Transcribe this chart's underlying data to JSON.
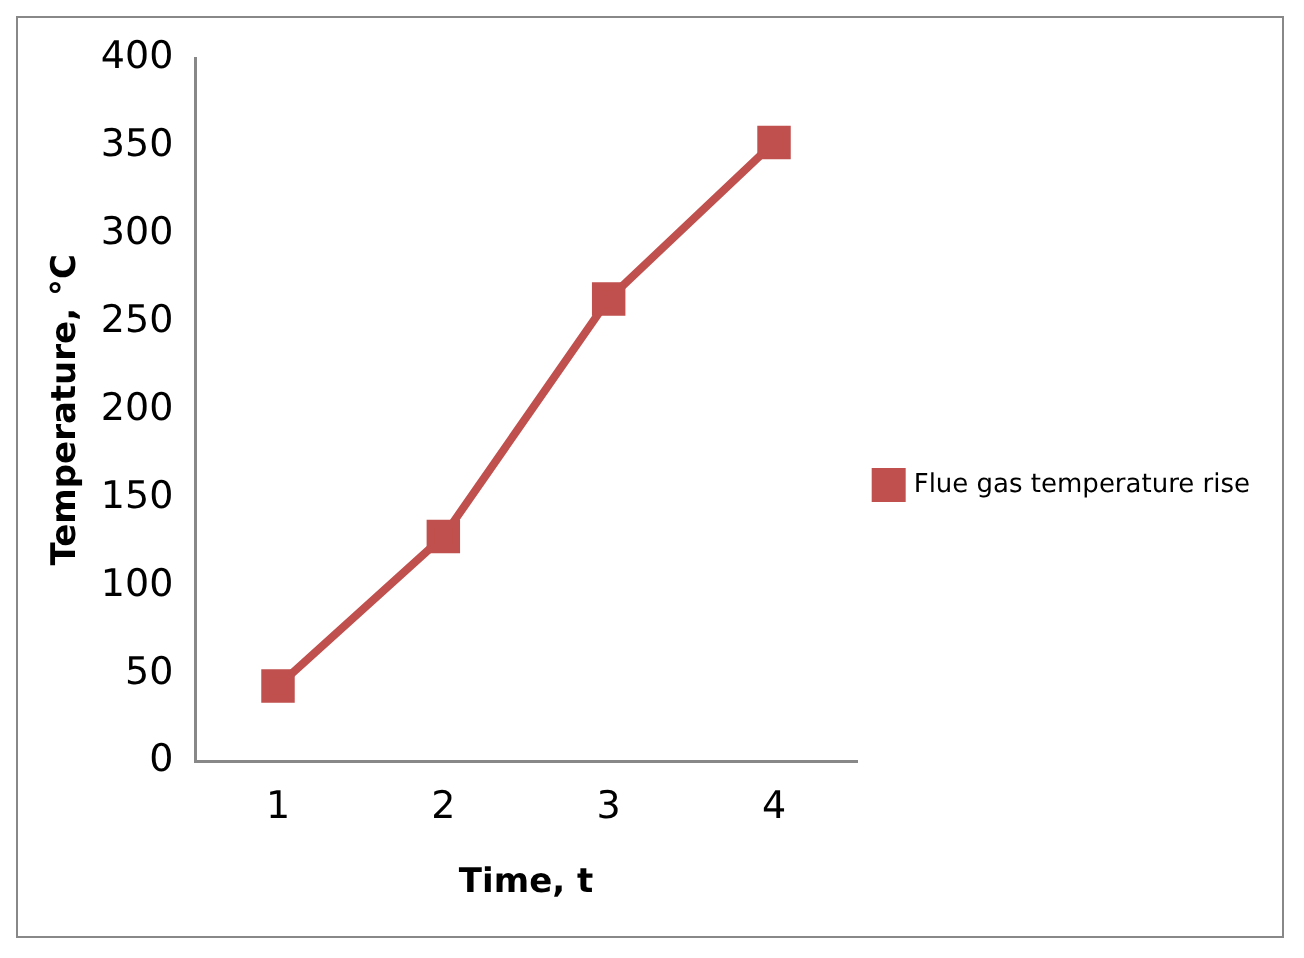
{
  "chart_data": {
    "type": "line",
    "xlabel": "Time, t",
    "ylabel": "Temperature, °C",
    "categories": [
      "1",
      "2",
      "3",
      "4"
    ],
    "series": [
      {
        "name": "Flue gas temperature rise",
        "color": "#c0504d",
        "values": [
          43,
          128,
          263,
          352
        ]
      }
    ],
    "ylim": [
      0,
      400
    ],
    "yticks": [
      0,
      50,
      100,
      150,
      200,
      250,
      300,
      350,
      400
    ],
    "grid": false,
    "legend": "right",
    "marker": "square",
    "line_style": "solid"
  }
}
